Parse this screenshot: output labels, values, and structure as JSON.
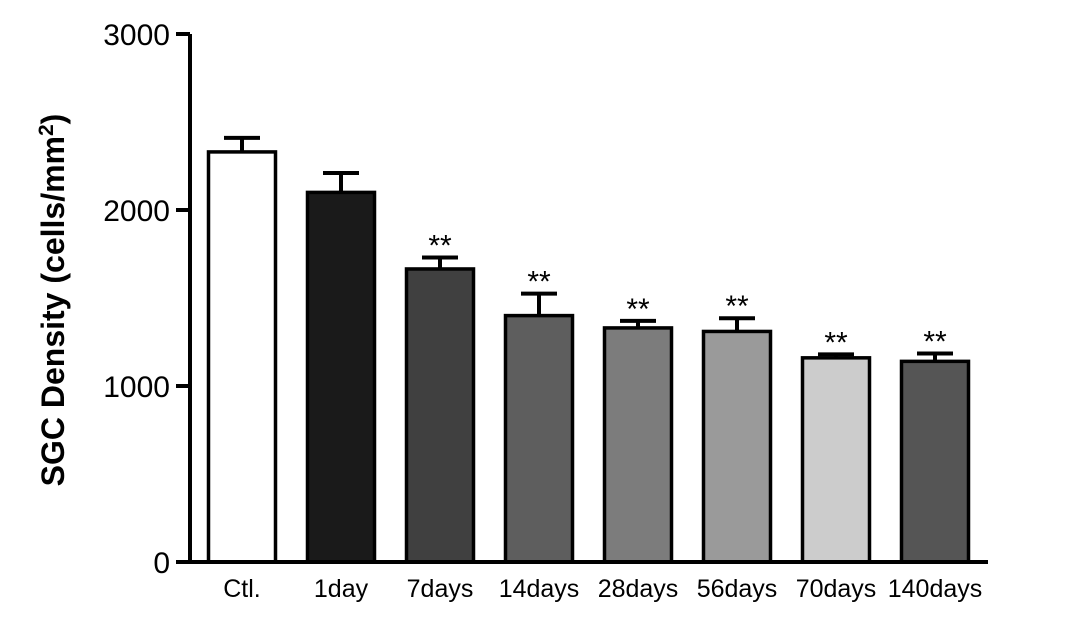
{
  "chart_data": {
    "type": "bar",
    "categories": [
      "Ctl.",
      "1day",
      "7days",
      "14days",
      "28days",
      "56days",
      "70days",
      "140days"
    ],
    "values": [
      2330,
      2100,
      1665,
      1400,
      1330,
      1310,
      1160,
      1140
    ],
    "errors": [
      80,
      110,
      65,
      125,
      40,
      75,
      20,
      45
    ],
    "significance": [
      "",
      "",
      "**",
      "**",
      "**",
      "**",
      "**",
      "**"
    ],
    "bar_colors": [
      "#ffffff",
      "#1a1a1a",
      "#404040",
      "#5e5e5e",
      "#7c7c7c",
      "#9a9a9a",
      "#cccccc",
      "#555555"
    ],
    "ylabel": {
      "main": "SGC Density (cells/mm",
      "superscript": "2",
      "close": ")"
    },
    "ylim": [
      0,
      3000
    ],
    "yticks": [
      0,
      1000,
      2000,
      3000
    ],
    "ytick_labels": [
      "0",
      "1000",
      "2000",
      "3000"
    ],
    "grid": false
  }
}
